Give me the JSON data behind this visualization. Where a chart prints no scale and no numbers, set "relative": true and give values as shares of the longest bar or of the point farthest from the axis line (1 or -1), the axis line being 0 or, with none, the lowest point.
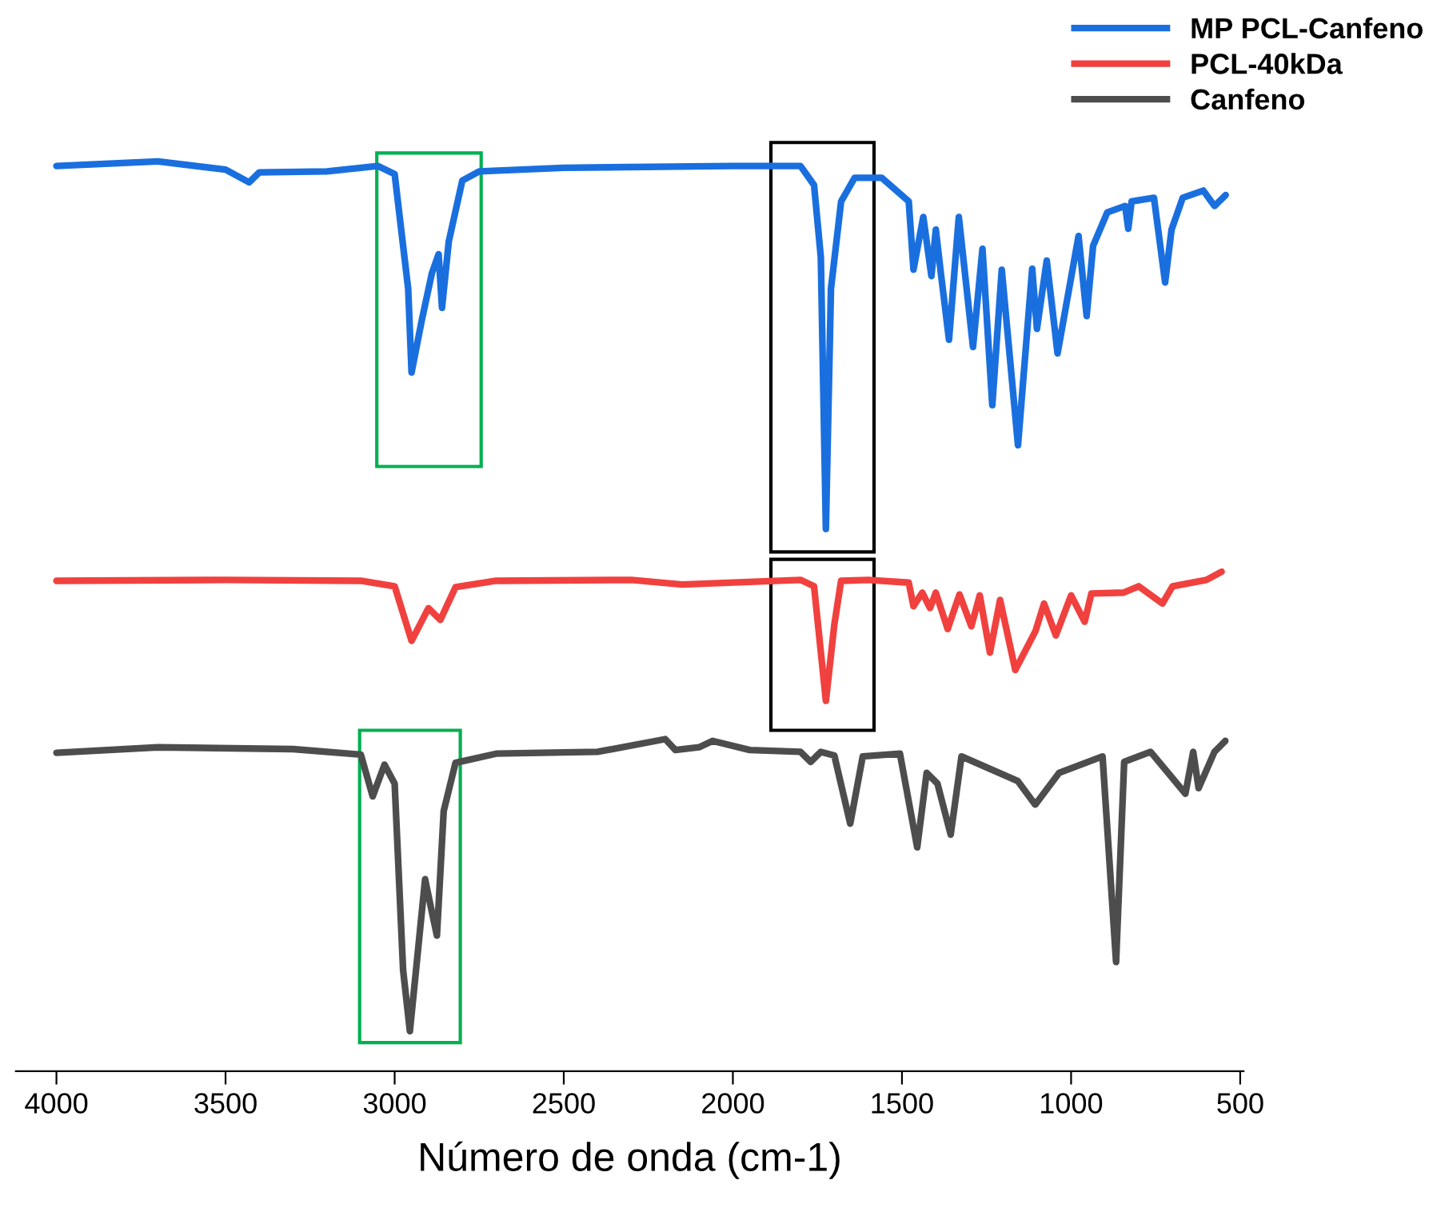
{
  "chart_data": {
    "type": "line",
    "relative": true,
    "xlabel": "Número de onda (cm-1)",
    "xlim": [
      4120,
      490
    ],
    "xticks": [
      4000,
      3500,
      3000,
      2500,
      2000,
      1500,
      1000,
      500
    ],
    "legend": "top right",
    "grid": false,
    "series": [
      {
        "name": "MP PCL-Canfeno",
        "color": "#1a6fdf",
        "x": [
          4000,
          3700,
          3500,
          3430,
          3400,
          3200,
          3050,
          3000,
          2960,
          2950,
          2920,
          2890,
          2870,
          2860,
          2840,
          2800,
          2750,
          2500,
          2000,
          1800,
          1760,
          1740,
          1725,
          1710,
          1680,
          1640,
          1560,
          1480,
          1466,
          1437,
          1413,
          1400,
          1385,
          1361,
          1332,
          1290,
          1262,
          1233,
          1205,
          1157,
          1115,
          1101,
          1072,
          1040,
          978,
          954,
          935,
          893,
          840,
          831,
          821,
          755,
          722,
          703,
          670,
          609,
          576,
          543
        ],
        "values": [
          0.995,
          1.0,
          0.991,
          0.977,
          0.988,
          0.989,
          0.995,
          0.986,
          0.86,
          0.768,
          0.825,
          0.877,
          0.898,
          0.839,
          0.912,
          0.979,
          0.989,
          0.993,
          0.995,
          0.995,
          0.974,
          0.895,
          0.596,
          0.86,
          0.956,
          0.982,
          0.982,
          0.956,
          0.881,
          0.939,
          0.874,
          0.925,
          0.877,
          0.804,
          0.939,
          0.796,
          0.904,
          0.732,
          0.881,
          0.688,
          0.882,
          0.816,
          0.891,
          0.789,
          0.918,
          0.83,
          0.907,
          0.944,
          0.951,
          0.926,
          0.956,
          0.96,
          0.867,
          0.925,
          0.96,
          0.968,
          0.951,
          0.963
        ]
      },
      {
        "name": "PCL-40kDa",
        "color": "#f0413f",
        "x": [
          4000,
          3500,
          3100,
          3000,
          2950,
          2900,
          2865,
          2820,
          2700,
          2300,
          2150,
          1800,
          1760,
          1725,
          1700,
          1680,
          1600,
          1480,
          1466,
          1440,
          1417,
          1400,
          1365,
          1330,
          1295,
          1270,
          1240,
          1210,
          1165,
          1105,
          1080,
          1045,
          1000,
          960,
          940,
          845,
          800,
          730,
          700,
          600,
          555
        ],
        "values": [
          0.539,
          0.54,
          0.539,
          0.533,
          0.473,
          0.509,
          0.496,
          0.532,
          0.539,
          0.54,
          0.535,
          0.54,
          0.533,
          0.407,
          0.491,
          0.539,
          0.54,
          0.537,
          0.511,
          0.526,
          0.509,
          0.526,
          0.486,
          0.524,
          0.489,
          0.523,
          0.46,
          0.518,
          0.441,
          0.484,
          0.514,
          0.479,
          0.523,
          0.494,
          0.525,
          0.526,
          0.533,
          0.514,
          0.533,
          0.54,
          0.549
        ]
      },
      {
        "name": "Canfeno",
        "color": "#4d4d4d",
        "x": [
          4000,
          3700,
          3300,
          3100,
          3065,
          3030,
          3000,
          2975,
          2955,
          2935,
          2910,
          2890,
          2875,
          2855,
          2820,
          2700,
          2400,
          2200,
          2170,
          2100,
          2060,
          1950,
          1800,
          1770,
          1740,
          1700,
          1653,
          1616,
          1506,
          1455,
          1427,
          1395,
          1356,
          1324,
          1158,
          1106,
          1035,
          907,
          867,
          843,
          765,
          662,
          639,
          623,
          576,
          544
        ],
        "values": [
          0.35,
          0.356,
          0.354,
          0.348,
          0.302,
          0.337,
          0.316,
          0.111,
          0.044,
          0.118,
          0.211,
          0.175,
          0.149,
          0.286,
          0.339,
          0.349,
          0.351,
          0.365,
          0.353,
          0.356,
          0.363,
          0.353,
          0.351,
          0.34,
          0.351,
          0.347,
          0.272,
          0.346,
          0.349,
          0.246,
          0.328,
          0.316,
          0.26,
          0.346,
          0.319,
          0.293,
          0.328,
          0.346,
          0.12,
          0.34,
          0.351,
          0.305,
          0.351,
          0.311,
          0.351,
          0.363
        ]
      }
    ]
  }
}
